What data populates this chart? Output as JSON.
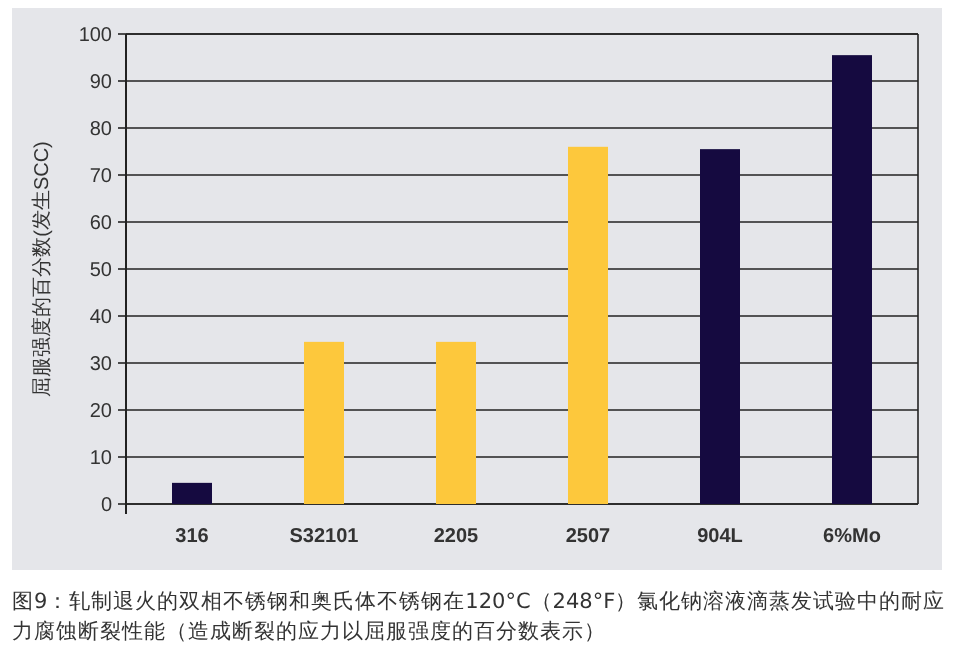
{
  "chart_data": {
    "type": "bar",
    "ylabel": "屈服强度的百分数(发生SCC)",
    "categories": [
      "316",
      "S32101",
      "2205",
      "2507",
      "904L",
      "6%Mo"
    ],
    "values": [
      4.5,
      34.5,
      34.5,
      76,
      75.5,
      95.5
    ],
    "colors": [
      "#150a40",
      "#fdc83c",
      "#fdc83c",
      "#fdc83c",
      "#150a40",
      "#150a40"
    ],
    "ylim": [
      0,
      100
    ],
    "yticks": [
      0,
      10,
      20,
      30,
      40,
      50,
      60,
      70,
      80,
      90,
      100
    ],
    "grid": "y",
    "annotations": [
      "图9：轧制退火的双相不锈钢和奥氏体不锈钢在120°C（248°F）氯化钠溶液滴蒸发试验中的耐应力腐蚀断裂性能（造成断裂的应力以屈服强度的百分数表示）"
    ]
  }
}
